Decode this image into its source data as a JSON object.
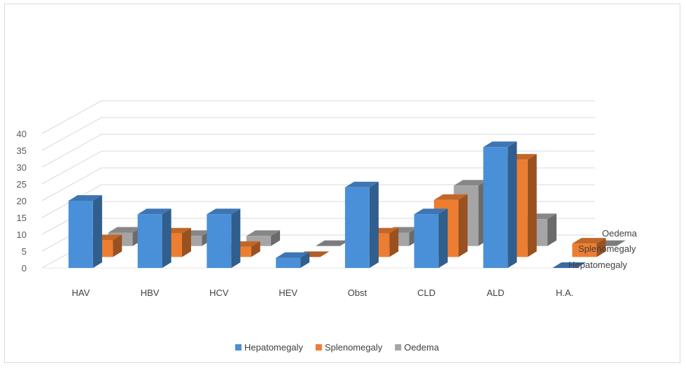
{
  "chart_data": {
    "type": "bar",
    "title": "",
    "xlabel": "",
    "ylabel": "",
    "ylim": [
      0,
      40
    ],
    "yticks": [
      0,
      5,
      10,
      15,
      20,
      25,
      30,
      35,
      40
    ],
    "categories": [
      "HAV",
      "HBV",
      "HCV",
      "HEV",
      "Obst",
      "CLD",
      "ALD",
      "H.A."
    ],
    "series": [
      {
        "name": "Hepatomegaly",
        "color": "#4a90d9",
        "values": [
          20,
          16,
          16,
          3,
          24,
          16,
          36,
          0
        ]
      },
      {
        "name": "Splenomegaly",
        "color": "#ed7d31",
        "values": [
          5,
          7,
          3,
          0,
          7,
          17,
          29,
          4
        ]
      },
      {
        "name": "Oedema",
        "color": "#a5a5a5",
        "values": [
          4,
          3,
          3,
          0,
          4,
          18,
          8,
          0
        ]
      }
    ],
    "depth_labels": [
      "Oedema",
      "Splenomegaly",
      "Hepatomegaly"
    ],
    "grid": true,
    "legend_position": "bottom"
  }
}
